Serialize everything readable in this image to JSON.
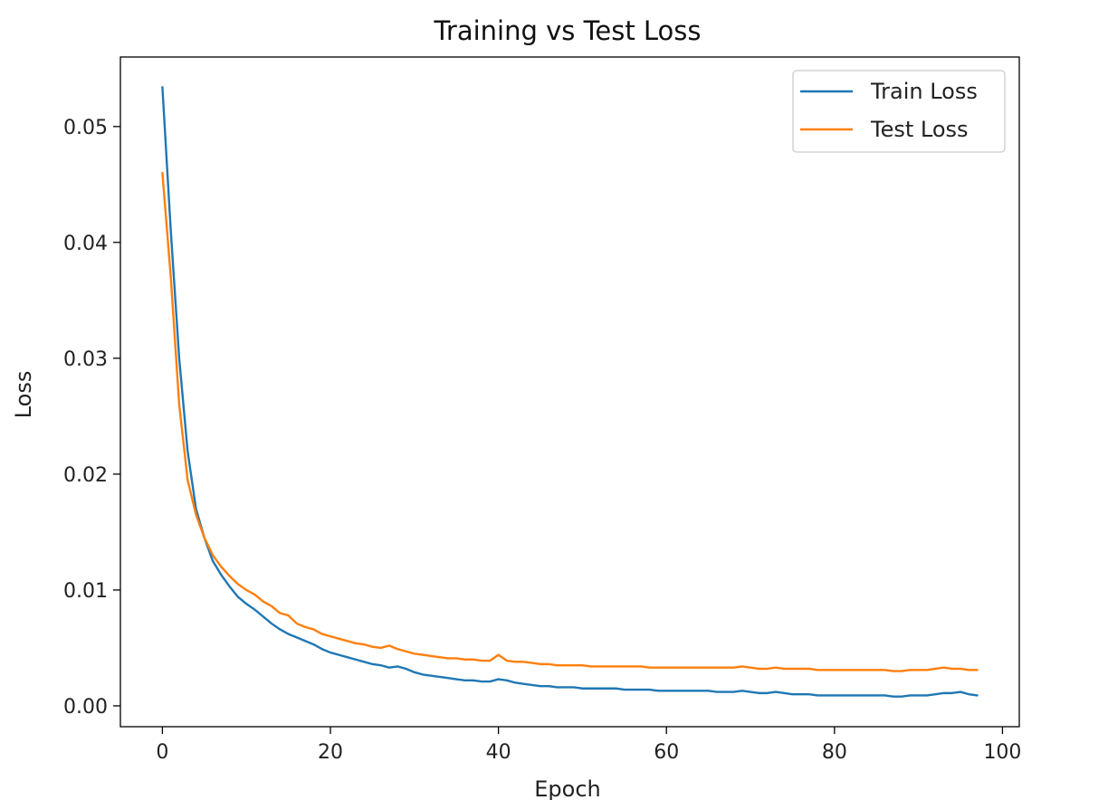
{
  "chart_data": {
    "type": "line",
    "title": "Training vs Test Loss",
    "xlabel": "Epoch",
    "ylabel": "Loss",
    "xlim": [
      -5,
      102
    ],
    "ylim": [
      -0.0018,
      0.056
    ],
    "xticks": [
      0,
      20,
      40,
      60,
      80,
      100
    ],
    "yticks": [
      0.0,
      0.01,
      0.02,
      0.03,
      0.04,
      0.05
    ],
    "xtick_labels": [
      "0",
      "20",
      "40",
      "60",
      "80",
      "100"
    ],
    "ytick_labels": [
      "0.00",
      "0.01",
      "0.02",
      "0.03",
      "0.04",
      "0.05"
    ],
    "grid": false,
    "legend_position": "top-right",
    "series": [
      {
        "name": "Train Loss",
        "color": "#1f77b4",
        "x": [
          0,
          1,
          2,
          3,
          4,
          5,
          6,
          7,
          8,
          9,
          10,
          11,
          12,
          13,
          14,
          15,
          16,
          17,
          18,
          19,
          20,
          21,
          22,
          23,
          24,
          25,
          26,
          27,
          28,
          29,
          30,
          31,
          32,
          33,
          34,
          35,
          36,
          37,
          38,
          39,
          40,
          41,
          42,
          43,
          44,
          45,
          46,
          47,
          48,
          49,
          50,
          51,
          52,
          53,
          54,
          55,
          56,
          57,
          58,
          59,
          60,
          61,
          62,
          63,
          64,
          65,
          66,
          67,
          68,
          69,
          70,
          71,
          72,
          73,
          74,
          75,
          76,
          77,
          78,
          79,
          80,
          81,
          82,
          83,
          84,
          85,
          86,
          87,
          88,
          89,
          90,
          91,
          92,
          93,
          94,
          95,
          96,
          97
        ],
        "y": [
          0.0534,
          0.041,
          0.03,
          0.022,
          0.017,
          0.0145,
          0.0125,
          0.0113,
          0.0103,
          0.0094,
          0.0088,
          0.0083,
          0.0077,
          0.0071,
          0.0066,
          0.0062,
          0.0059,
          0.0056,
          0.0053,
          0.0049,
          0.0046,
          0.0044,
          0.0042,
          0.004,
          0.0038,
          0.0036,
          0.0035,
          0.0033,
          0.0034,
          0.0032,
          0.0029,
          0.0027,
          0.0026,
          0.0025,
          0.0024,
          0.0023,
          0.0022,
          0.0022,
          0.0021,
          0.0021,
          0.0023,
          0.0022,
          0.002,
          0.0019,
          0.0018,
          0.0017,
          0.0017,
          0.0016,
          0.0016,
          0.0016,
          0.0015,
          0.0015,
          0.0015,
          0.0015,
          0.0015,
          0.0014,
          0.0014,
          0.0014,
          0.0014,
          0.0013,
          0.0013,
          0.0013,
          0.0013,
          0.0013,
          0.0013,
          0.0013,
          0.0012,
          0.0012,
          0.0012,
          0.0013,
          0.0012,
          0.0011,
          0.0011,
          0.0012,
          0.0011,
          0.001,
          0.001,
          0.001,
          0.0009,
          0.0009,
          0.0009,
          0.0009,
          0.0009,
          0.0009,
          0.0009,
          0.0009,
          0.0009,
          0.0008,
          0.0008,
          0.0009,
          0.0009,
          0.0009,
          0.001,
          0.0011,
          0.0011,
          0.0012,
          0.001,
          0.0009
        ]
      },
      {
        "name": "Test Loss",
        "color": "#ff7f0e",
        "x": [
          0,
          1,
          2,
          3,
          4,
          5,
          6,
          7,
          8,
          9,
          10,
          11,
          12,
          13,
          14,
          15,
          16,
          17,
          18,
          19,
          20,
          21,
          22,
          23,
          24,
          25,
          26,
          27,
          28,
          29,
          30,
          31,
          32,
          33,
          34,
          35,
          36,
          37,
          38,
          39,
          40,
          41,
          42,
          43,
          44,
          45,
          46,
          47,
          48,
          49,
          50,
          51,
          52,
          53,
          54,
          55,
          56,
          57,
          58,
          59,
          60,
          61,
          62,
          63,
          64,
          65,
          66,
          67,
          68,
          69,
          70,
          71,
          72,
          73,
          74,
          75,
          76,
          77,
          78,
          79,
          80,
          81,
          82,
          83,
          84,
          85,
          86,
          87,
          88,
          89,
          90,
          91,
          92,
          93,
          94,
          95,
          96,
          97
        ],
        "y": [
          0.046,
          0.037,
          0.026,
          0.0195,
          0.0165,
          0.0145,
          0.013,
          0.012,
          0.0112,
          0.0105,
          0.01,
          0.0096,
          0.009,
          0.0086,
          0.008,
          0.0078,
          0.0071,
          0.0068,
          0.0066,
          0.0062,
          0.006,
          0.0058,
          0.0056,
          0.0054,
          0.0053,
          0.0051,
          0.005,
          0.0052,
          0.0049,
          0.0047,
          0.0045,
          0.0044,
          0.0043,
          0.0042,
          0.0041,
          0.0041,
          0.004,
          0.004,
          0.0039,
          0.0039,
          0.0044,
          0.0039,
          0.0038,
          0.0038,
          0.0037,
          0.0036,
          0.0036,
          0.0035,
          0.0035,
          0.0035,
          0.0035,
          0.0034,
          0.0034,
          0.0034,
          0.0034,
          0.0034,
          0.0034,
          0.0034,
          0.0033,
          0.0033,
          0.0033,
          0.0033,
          0.0033,
          0.0033,
          0.0033,
          0.0033,
          0.0033,
          0.0033,
          0.0033,
          0.0034,
          0.0033,
          0.0032,
          0.0032,
          0.0033,
          0.0032,
          0.0032,
          0.0032,
          0.0032,
          0.0031,
          0.0031,
          0.0031,
          0.0031,
          0.0031,
          0.0031,
          0.0031,
          0.0031,
          0.0031,
          0.003,
          0.003,
          0.0031,
          0.0031,
          0.0031,
          0.0032,
          0.0033,
          0.0032,
          0.0032,
          0.0031,
          0.0031
        ]
      }
    ]
  }
}
